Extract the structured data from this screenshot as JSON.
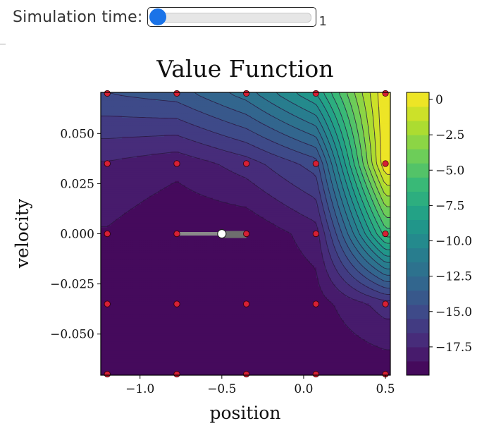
{
  "controls": {
    "slider_label": "Simulation time:",
    "slider_value": "1",
    "slider_level": 0.0
  },
  "chart_data": {
    "type": "heatmap",
    "title": "Value Function",
    "xlabel": "position",
    "ylabel": "velocity",
    "xlim": [
      -1.24,
      0.53
    ],
    "ylim": [
      -0.0705,
      0.0705
    ],
    "x_ticks": [
      -1.0,
      -0.5,
      0.0,
      0.5
    ],
    "x_tick_labels": [
      "−1.0",
      "−0.5",
      "0.0",
      "0.5"
    ],
    "y_ticks": [
      -0.05,
      -0.025,
      0.0,
      0.025,
      0.05
    ],
    "y_tick_labels": [
      "−0.050",
      "−0.025",
      "0.000",
      "0.025",
      "0.050"
    ],
    "grid": false,
    "grid_x": [
      -1.2,
      -0.775,
      -0.35,
      0.075,
      0.5
    ],
    "grid_y": [
      -0.07,
      -0.035,
      0.0,
      0.035,
      0.07
    ],
    "values": [
      [
        -19.4,
        -19.4,
        -19.4,
        -19.4,
        -19.3
      ],
      [
        -18.5,
        -19.4,
        -19.4,
        -19.0,
        -17.0
      ],
      [
        -18.6,
        -19.4,
        -19.4,
        -18.0,
        -6.0
      ],
      [
        -17.6,
        -18.2,
        -17.0,
        -15.0,
        0.5
      ],
      [
        -14.5,
        -14.0,
        -12.0,
        -8.5,
        0.5
      ]
    ],
    "colorbar": {
      "range": [
        -19.5,
        0.5
      ],
      "levels": 20,
      "ticks": [
        0,
        -2.5,
        -5.0,
        -7.5,
        -10.0,
        -12.5,
        -15.0,
        -17.5
      ],
      "tick_labels": [
        "0",
        "−2.5",
        "−5.0",
        "−7.5",
        "−10.0",
        "−12.5",
        "−15.0",
        "−17.5"
      ]
    },
    "colormap": [
      "#440154",
      "#482878",
      "#3e4989",
      "#31688e",
      "#26828e",
      "#1f9e89",
      "#35b779",
      "#6ece58",
      "#b5de2b",
      "#fde725"
    ],
    "car_state": {
      "position": -0.5,
      "velocity": 0.0
    },
    "car_trail": {
      "x_start": -0.78,
      "x_end": -0.35
    },
    "colors": {
      "grid_point": "#d62035",
      "trail": "#7d7d7d",
      "car": "#ffffff"
    }
  }
}
